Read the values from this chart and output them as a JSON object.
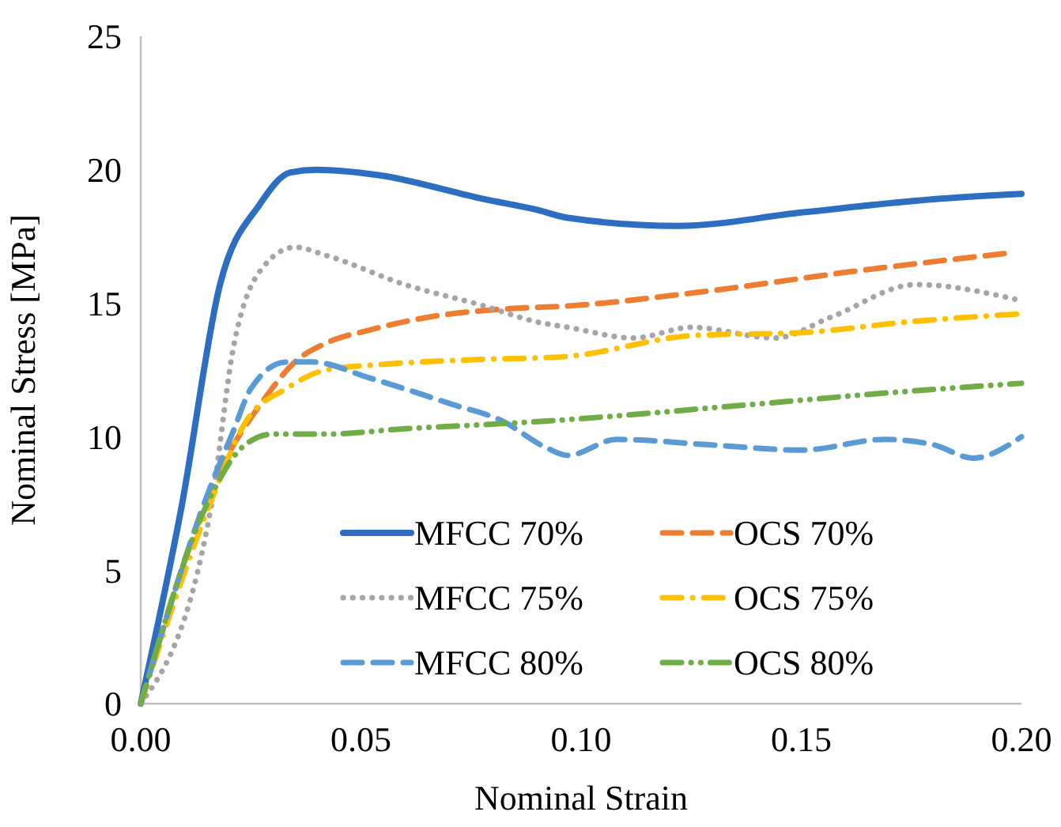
{
  "chart_data": {
    "type": "line",
    "xlabel": "Nominal Strain",
    "ylabel": "Nominal Stress [MPa]",
    "xlim": [
      0,
      0.2
    ],
    "xticks": [
      {
        "value": 0,
        "label": "0.00"
      },
      0.05,
      {
        "value": 0.1,
        "label": "0.10"
      },
      0.15,
      {
        "value": 0.2,
        "label": "0.20"
      }
    ],
    "ylim": [
      0,
      25
    ],
    "yticks": [
      0,
      5,
      10,
      15,
      20,
      25
    ],
    "grid": false,
    "legend": "bottom",
    "marker": "none",
    "series": [
      {
        "name": "MFCC 70%",
        "color": "#2e6ec0",
        "line_style": "solid",
        "x": [
          0,
          0.0093,
          0.018,
          0.027,
          0.034,
          0.04,
          0.054,
          0.078,
          0.09,
          0.097,
          0.122,
          0.15,
          0.18,
          0.2
        ],
        "values": [
          0,
          7.4,
          15.7,
          18.7,
          19.9,
          20.0,
          19.8,
          18.9,
          18.5,
          18.2,
          17.9,
          18.4,
          18.9,
          19.1
        ]
      },
      {
        "name": "OCS 70%",
        "color": "#ed7d31",
        "line_style": "dashed",
        "x": [
          0,
          0.017,
          0.028,
          0.035,
          0.042,
          0.052,
          0.066,
          0.084,
          0.097,
          0.126,
          0.162,
          0.198
        ],
        "values": [
          0,
          8.4,
          11.4,
          12.8,
          13.5,
          14.0,
          14.5,
          14.8,
          14.9,
          15.4,
          16.2,
          16.9
        ]
      },
      {
        "name": "MFCC 75%",
        "color": "#a5a5a5",
        "line_style": "dotted",
        "x": [
          0,
          0.016,
          0.021,
          0.028,
          0.035,
          0.042,
          0.06,
          0.078,
          0.09,
          0.097,
          0.112,
          0.125,
          0.144,
          0.157,
          0.176,
          0.2
        ],
        "values": [
          0,
          7.4,
          13.3,
          16.4,
          17.1,
          16.8,
          15.7,
          14.9,
          14.3,
          14.1,
          13.7,
          14.1,
          13.7,
          14.5,
          15.7,
          15.1
        ]
      },
      {
        "name": "OCS 75%",
        "color": "#ffc000",
        "line_style": "dashdot",
        "x": [
          0,
          0.016,
          0.024,
          0.033,
          0.042,
          0.054,
          0.078,
          0.096,
          0.126,
          0.15,
          0.174,
          0.199
        ],
        "values": [
          0,
          7.6,
          10.6,
          11.8,
          12.5,
          12.7,
          12.9,
          13.0,
          13.8,
          13.9,
          14.3,
          14.6
        ]
      },
      {
        "name": "MFCC 80%",
        "color": "#5b9bd5",
        "line_style": "dashed",
        "x": [
          0,
          0.016,
          0.021,
          0.025,
          0.033,
          0.039,
          0.052,
          0.071,
          0.082,
          0.092,
          0.097,
          0.108,
          0.129,
          0.15,
          0.169,
          0.18,
          0.189,
          0.2
        ],
        "values": [
          0,
          8.2,
          10.2,
          11.8,
          12.8,
          12.8,
          12.2,
          11.2,
          10.6,
          9.6,
          9.3,
          9.9,
          9.7,
          9.5,
          9.9,
          9.7,
          9.2,
          10.0
        ]
      },
      {
        "name": "OCS 80%",
        "color": "#70ad47",
        "line_style": "dashdotdot",
        "x": [
          0,
          0.016,
          0.023,
          0.03,
          0.042,
          0.06,
          0.083,
          0.093,
          0.138,
          0.174,
          0.2
        ],
        "values": [
          0,
          7.8,
          9.6,
          10.1,
          10.1,
          10.3,
          10.5,
          10.6,
          11.2,
          11.7,
          12.0
        ]
      }
    ]
  }
}
